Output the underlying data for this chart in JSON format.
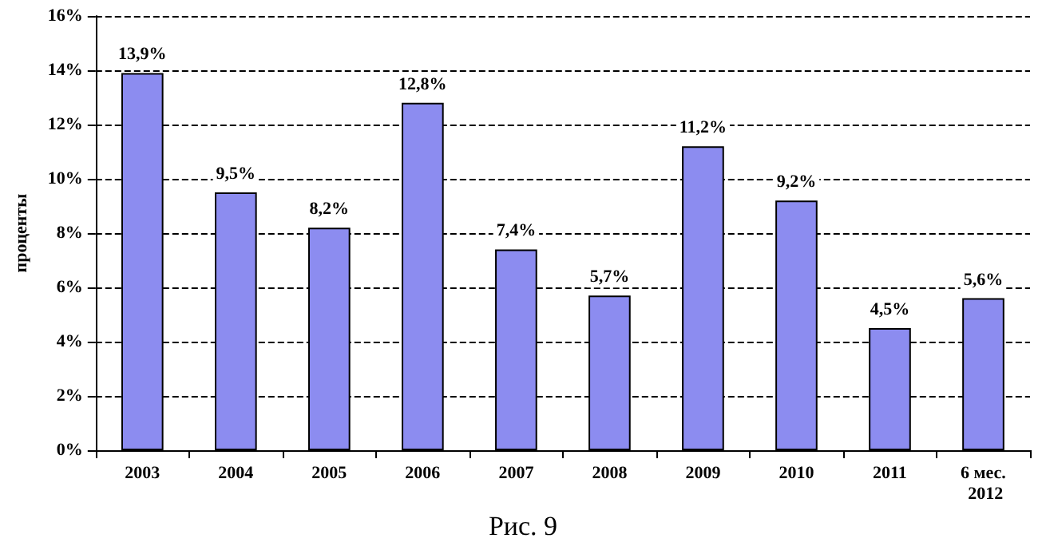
{
  "chart_data": {
    "type": "bar",
    "ylabel": "проценты",
    "annotations": [
      "Рис. 9"
    ],
    "categories": [
      "2003",
      "2004",
      "2005",
      "2006",
      "2007",
      "2008",
      "2009",
      "2010",
      "2011",
      "6 мес. 2012"
    ],
    "values": [
      13.9,
      9.5,
      8.2,
      12.8,
      7.4,
      5.7,
      11.2,
      9.2,
      4.5,
      5.6
    ],
    "value_labels": [
      "13,9%",
      "9,5%",
      "8,2%",
      "12,8%",
      "7,4%",
      "5,7%",
      "11,2%",
      "9,2%",
      "4,5%",
      "5,6%"
    ],
    "color": "#8c8cf0",
    "ylim": [
      0,
      16
    ],
    "yticks": [
      {
        "value": 0,
        "label": "0%"
      },
      {
        "value": 2,
        "label": "2%"
      },
      {
        "value": 4,
        "label": "4%"
      },
      {
        "value": 6,
        "label": "6%"
      },
      {
        "value": 8,
        "label": "8%"
      },
      {
        "value": 10,
        "label": "10%"
      },
      {
        "value": 12,
        "label": "12%"
      },
      {
        "value": 14,
        "label": "14%"
      },
      {
        "value": 16,
        "label": "16%"
      }
    ],
    "grid": "y"
  }
}
